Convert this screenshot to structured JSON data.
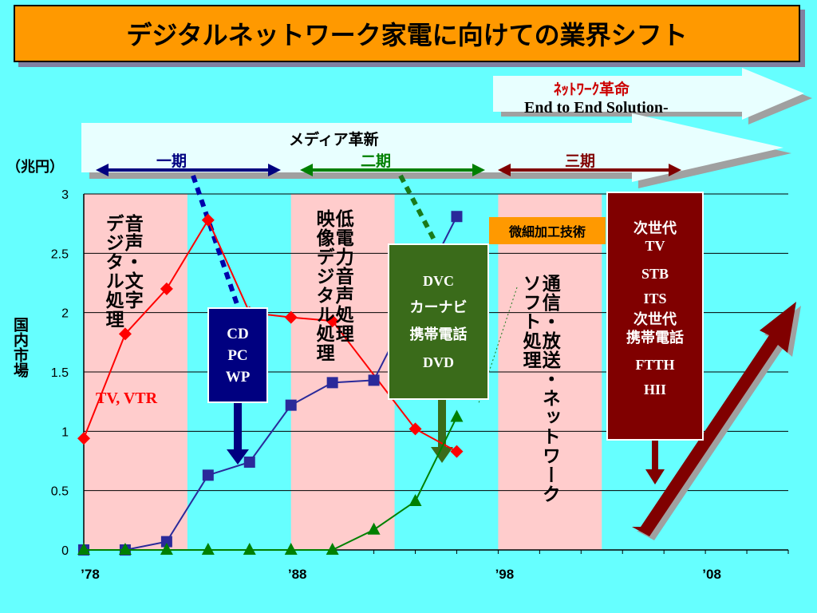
{
  "title": "デジタルネットワーク家電に向けての業界シフト",
  "arrows": {
    "network": "ﾈｯﾄﾜｰｸ革命",
    "network_sub": "End to End Solution-",
    "media": "メディア革新"
  },
  "periods": [
    {
      "label": "一期",
      "color": "#000080"
    },
    {
      "label": "二期",
      "color": "#008000"
    },
    {
      "label": "三期",
      "color": "#800000"
    }
  ],
  "unit_label": "（兆円）",
  "bands": {
    "phase1": "音声・文字\nデジタル処理",
    "phase2": "低電力音声処理\n映像デジタル処理",
    "phase3": "通信・放送・ネットワーク\nソフト処理"
  },
  "tv_vtr": "TV, VTR",
  "box_phase1": [
    "CD",
    "PC",
    "WP"
  ],
  "box_phase2": [
    "DVC",
    "カーナビ",
    "携帯電話",
    "DVD"
  ],
  "box_phase3": [
    "次世代",
    "TV",
    "STB",
    "ITS",
    "次世代",
    "携帯電話",
    "FTTH",
    "HII"
  ],
  "micro_label": "微細加工技術",
  "chart_data": {
    "type": "line",
    "ylabel": "国内市場",
    "ylim": [
      0,
      3
    ],
    "yticks": [
      "0",
      "0.5",
      "1",
      "1.5",
      "2",
      "2.5",
      "3"
    ],
    "xlim": [
      1978,
      2012
    ],
    "xticks": [
      {
        "year": 1978,
        "label": "’78"
      },
      {
        "year": 1988,
        "label": "’88"
      },
      {
        "year": 1998,
        "label": "’98"
      },
      {
        "year": 2008,
        "label": "’08"
      }
    ],
    "grid": true,
    "series": [
      {
        "color": "#ff0000",
        "marker": "diamond",
        "x": [
          1978,
          1980,
          1982,
          1984,
          1986,
          1988,
          1990,
          1994,
          1996
        ],
        "y": [
          0.94,
          1.82,
          2.2,
          2.78,
          2.0,
          1.96,
          1.93,
          1.02,
          0.83
        ]
      },
      {
        "color": "#2a2a9a",
        "marker": "square",
        "x": [
          1978,
          1980,
          1982,
          1984,
          1986,
          1988,
          1990,
          1992,
          1996
        ],
        "y": [
          0.0,
          0.0,
          0.07,
          0.63,
          0.74,
          1.22,
          1.41,
          1.43,
          2.81
        ]
      },
      {
        "color": "#008000",
        "marker": "triangle",
        "x": [
          1978,
          1980,
          1982,
          1984,
          1986,
          1988,
          1990,
          1992,
          1994,
          1996
        ],
        "y": [
          0.0,
          0.0,
          0.0,
          0.0,
          0.0,
          0.0,
          0.0,
          0.17,
          0.41,
          1.12
        ]
      }
    ]
  }
}
